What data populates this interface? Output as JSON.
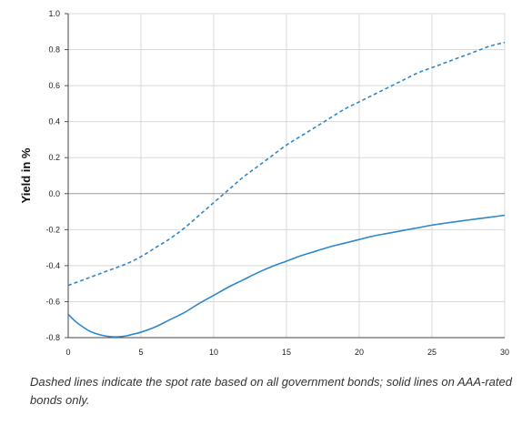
{
  "chart_data": {
    "type": "line",
    "title": "",
    "xlabel": "",
    "ylabel": "Yield in %",
    "xlim": [
      0,
      30
    ],
    "ylim": [
      -0.8,
      1.0
    ],
    "x_ticks": [
      "0",
      "5",
      "10",
      "15",
      "20",
      "25",
      "30"
    ],
    "y_ticks": [
      "1.0",
      "0.8",
      "0.6",
      "0.4",
      "0.2",
      "0.0",
      "-0.2",
      "-0.4",
      "-0.6",
      "-0.8"
    ],
    "grid": true,
    "legend": "none",
    "series": [
      {
        "style": "dashed",
        "color": "#2f87c9",
        "x": [
          0,
          1,
          2,
          3,
          4,
          5,
          6,
          7,
          8,
          9,
          10,
          11,
          12,
          13,
          14,
          15,
          16,
          17,
          18,
          19,
          20,
          21,
          22,
          23,
          24,
          25,
          26,
          27,
          28,
          29,
          30
        ],
        "y": [
          -0.51,
          -0.48,
          -0.45,
          -0.42,
          -0.39,
          -0.35,
          -0.3,
          -0.25,
          -0.19,
          -0.12,
          -0.05,
          0.02,
          0.09,
          0.15,
          0.21,
          0.27,
          0.32,
          0.37,
          0.42,
          0.47,
          0.51,
          0.55,
          0.59,
          0.63,
          0.67,
          0.7,
          0.73,
          0.76,
          0.79,
          0.82,
          0.84
        ]
      },
      {
        "style": "solid",
        "color": "#2f87c9",
        "x": [
          0,
          0.5,
          1,
          1.5,
          2,
          2.5,
          3,
          3.5,
          4,
          4.5,
          5,
          6,
          7,
          8,
          9,
          10,
          11,
          12,
          13,
          14,
          15,
          16,
          17,
          18,
          19,
          20,
          21,
          22,
          23,
          24,
          25,
          26,
          27,
          28,
          29,
          30
        ],
        "y": [
          -0.67,
          -0.71,
          -0.74,
          -0.765,
          -0.78,
          -0.79,
          -0.795,
          -0.795,
          -0.79,
          -0.78,
          -0.77,
          -0.74,
          -0.7,
          -0.66,
          -0.61,
          -0.565,
          -0.52,
          -0.48,
          -0.44,
          -0.405,
          -0.375,
          -0.345,
          -0.32,
          -0.295,
          -0.275,
          -0.255,
          -0.235,
          -0.22,
          -0.205,
          -0.19,
          -0.175,
          -0.163,
          -0.152,
          -0.141,
          -0.131,
          -0.12
        ]
      }
    ]
  },
  "caption": "Dashed lines indicate the spot rate based on all government bonds; solid lines on AAA-rated bonds only."
}
